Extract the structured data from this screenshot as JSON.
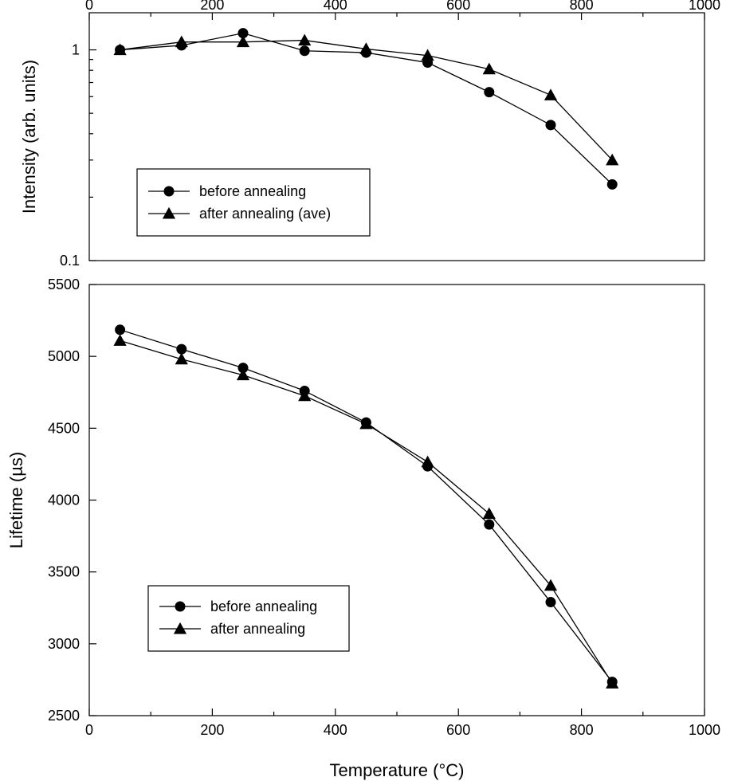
{
  "chart_data": [
    {
      "type": "line",
      "title": "",
      "xlabel": "",
      "ylabel": "Intensity (arb. units)",
      "x_axis_position": "top",
      "xlim": [
        0,
        1000
      ],
      "ylim": [
        0.1,
        1.5
      ],
      "yscale": "log",
      "x_ticks": [
        "0",
        "200",
        "400",
        "600",
        "800",
        "1000"
      ],
      "y_ticks": [
        "0.1",
        "1"
      ],
      "grid": false,
      "legend_position": "lower-left",
      "series": [
        {
          "name": "before annealing",
          "marker": "circle",
          "x": [
            50,
            150,
            250,
            350,
            450,
            550,
            650,
            750,
            850
          ],
          "y": [
            1.0,
            1.05,
            1.2,
            0.99,
            0.97,
            0.87,
            0.63,
            0.44,
            0.23
          ]
        },
        {
          "name": "after annealing (ave)",
          "marker": "triangle",
          "x": [
            50,
            150,
            250,
            350,
            450,
            550,
            650,
            750,
            850
          ],
          "y": [
            1.0,
            1.09,
            1.09,
            1.11,
            1.01,
            0.94,
            0.81,
            0.61,
            0.3
          ]
        }
      ]
    },
    {
      "type": "line",
      "title": "",
      "xlabel": "Temperature (°C)",
      "ylabel": "Lifetime (µs)",
      "xlim": [
        0,
        1000
      ],
      "ylim": [
        2500,
        5500
      ],
      "yscale": "linear",
      "x_ticks": [
        "0",
        "200",
        "400",
        "600",
        "800",
        "1000"
      ],
      "y_ticks": [
        "2500",
        "3000",
        "3500",
        "4000",
        "4500",
        "5000",
        "5500"
      ],
      "grid": false,
      "legend_position": "lower-left",
      "series": [
        {
          "name": "before annealing",
          "marker": "circle",
          "x": [
            50,
            150,
            250,
            350,
            450,
            550,
            650,
            750,
            850
          ],
          "y": [
            5185,
            5050,
            4920,
            4760,
            4540,
            4235,
            3830,
            3290,
            2735
          ]
        },
        {
          "name": "after annealing",
          "marker": "triangle",
          "x": [
            50,
            150,
            250,
            350,
            450,
            550,
            650,
            750,
            850
          ],
          "y": [
            5110,
            4980,
            4870,
            4725,
            4530,
            4265,
            3905,
            3405,
            2725
          ]
        }
      ]
    }
  ]
}
